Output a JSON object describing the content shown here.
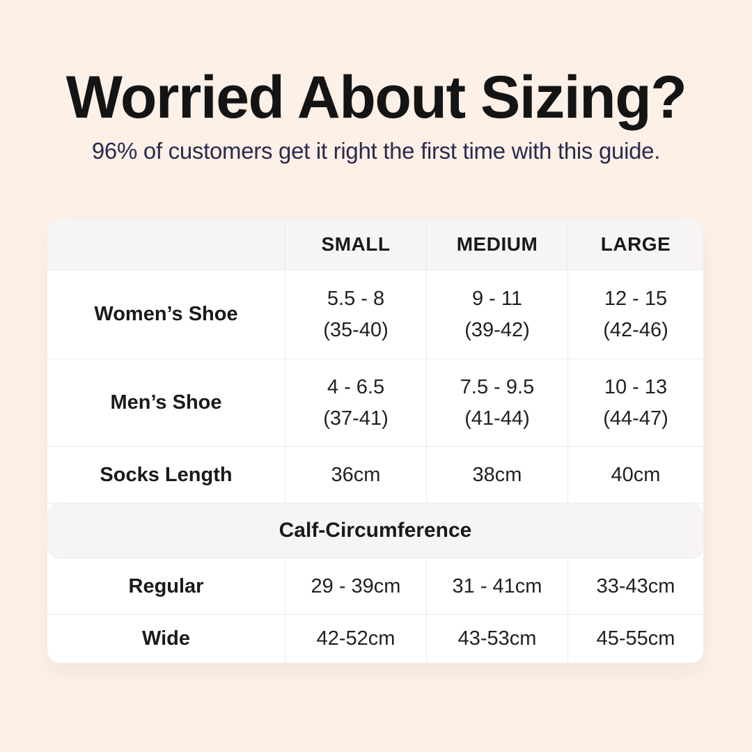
{
  "colors": {
    "page_background": "#fdf0e7",
    "panel_background": "#ffffff",
    "band_background": "#f6f5f4",
    "grid_border": "#eaeaea",
    "title_text": "#141414",
    "subtitle_text": "#2b2b4d",
    "table_text": "#1a1a1c"
  },
  "header": {
    "title": "Worried About Sizing?",
    "subtitle": "96% of customers get it right the first time with this guide."
  },
  "size_table": {
    "column_headers": [
      "SMALL",
      "MEDIUM",
      "LARGE"
    ],
    "shoe_rows": [
      {
        "label": "Women’s Shoe",
        "cells": [
          {
            "line1": "5.5 - 8",
            "line2": "(35-40)"
          },
          {
            "line1": "9 - 11",
            "line2": "(39-42)"
          },
          {
            "line1": "12 - 15",
            "line2": "(42-46)"
          }
        ]
      },
      {
        "label": "Men’s Shoe",
        "cells": [
          {
            "line1": "4 - 6.5",
            "line2": "(37-41)"
          },
          {
            "line1": "7.5 - 9.5",
            "line2": "(41-44)"
          },
          {
            "line1": "10 - 13",
            "line2": "(44-47)"
          }
        ]
      },
      {
        "label": "Socks Length",
        "cells": [
          "36cm",
          "38cm",
          "40cm"
        ]
      }
    ],
    "calf_section": {
      "title": "Calf-Circumference",
      "rows": [
        {
          "label": "Regular",
          "cells": [
            "29 - 39cm",
            "31 - 41cm",
            "33-43cm"
          ]
        },
        {
          "label": "Wide",
          "cells": [
            "42-52cm",
            "43-53cm",
            "45-55cm"
          ]
        }
      ]
    }
  },
  "chart_data": {
    "type": "table",
    "title": "Worried About Sizing?",
    "subtitle": "96% of customers get it right the first time with this guide.",
    "columns": [
      "",
      "SMALL",
      "MEDIUM",
      "LARGE"
    ],
    "rows": [
      [
        "Women’s Shoe",
        "5.5 - 8 (35-40)",
        "9 - 11 (39-42)",
        "12 - 15 (42-46)"
      ],
      [
        "Men’s Shoe",
        "4 - 6.5 (37-41)",
        "7.5 - 9.5 (41-44)",
        "10 - 13 (44-47)"
      ],
      [
        "Socks Length",
        "36cm",
        "38cm",
        "40cm"
      ],
      [
        "Calf-Circumference",
        "",
        "",
        ""
      ],
      [
        "Regular",
        "29 - 39cm",
        "31 - 41cm",
        "33-43cm"
      ],
      [
        "Wide",
        "42-52cm",
        "43-53cm",
        "45-55cm"
      ]
    ],
    "layout": {
      "section_header_row_index": 3,
      "header_row_background": "#f6f5f4",
      "grid_on": true
    }
  }
}
